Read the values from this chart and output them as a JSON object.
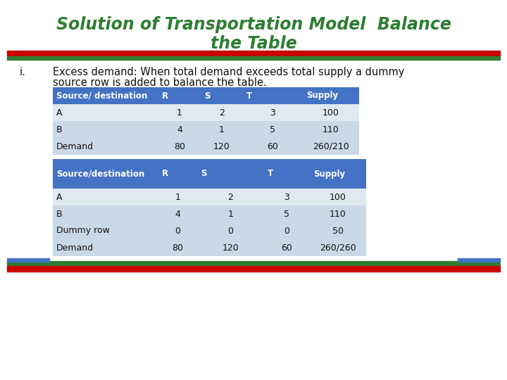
{
  "title_line1": "Solution of Transportation Model  Balance",
  "title_line2": "the Table",
  "title_color": "#2E7D32",
  "bg_color": "#FFFFFF",
  "red_line_color": "#CC0000",
  "green_line_color": "#2E7D32",
  "blue_bar_color": "#4472C4",
  "table1_header": [
    "Source/ destination",
    "R",
    "S",
    "T",
    "Supply"
  ],
  "table1_rows": [
    [
      "A",
      "1",
      "2",
      "3",
      "100"
    ],
    [
      "B",
      "4",
      "1",
      "5",
      "110"
    ],
    [
      "Demand",
      "80",
      "120",
      "60",
      "260/210"
    ]
  ],
  "table1_header_bg": "#4472C4",
  "table1_header_fg": "#FFFFFF",
  "table1_row_bgs": [
    "#DEEAF1",
    "#C9D9E8",
    "#C9D9E8"
  ],
  "table2_header": [
    "Source/destination",
    "R",
    "S",
    "T",
    "Supply"
  ],
  "table2_rows": [
    [
      "A",
      "1",
      "2",
      "3",
      "100"
    ],
    [
      "B",
      "4",
      "1",
      "5",
      "110"
    ],
    [
      "Dummy row",
      "0",
      "0",
      "0",
      "50"
    ],
    [
      "Demand",
      "80",
      "120",
      "60",
      "260/260"
    ]
  ],
  "table2_header_bg": "#4472C4",
  "table2_header_fg": "#FFFFFF",
  "table2_row_bgs": [
    "#DEEAF1",
    "#C9D9E8",
    "#C9D9E8",
    "#C9D9E8"
  ]
}
